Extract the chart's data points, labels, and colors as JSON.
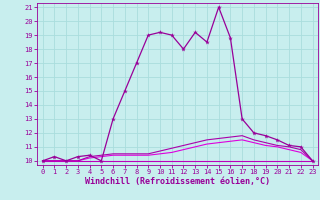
{
  "xlabel": "Windchill (Refroidissement éolien,°C)",
  "xlim": [
    -0.5,
    23.5
  ],
  "ylim": [
    9.7,
    21.3
  ],
  "xticks": [
    0,
    1,
    2,
    3,
    4,
    5,
    6,
    7,
    8,
    9,
    10,
    11,
    12,
    13,
    14,
    15,
    16,
    17,
    18,
    19,
    20,
    21,
    22,
    23
  ],
  "yticks": [
    10,
    11,
    12,
    13,
    14,
    15,
    16,
    17,
    18,
    19,
    20,
    21
  ],
  "bg_color": "#c8eeee",
  "grid_color": "#aadddd",
  "line_color1": "#990099",
  "line_color2": "#bb00bb",
  "line_color3": "#dd00dd",
  "line_color4": "#aa00aa",
  "series1_x": [
    0,
    1,
    2,
    3,
    4,
    5,
    6,
    7,
    8,
    9,
    10,
    11,
    12,
    13,
    14,
    15,
    16,
    17,
    18,
    19,
    20,
    21,
    22,
    23
  ],
  "series1_y": [
    10,
    10.3,
    10,
    10.3,
    10.4,
    10,
    13,
    15,
    17,
    19,
    19.2,
    19,
    18,
    19.2,
    18.5,
    21,
    18.8,
    13,
    12,
    11.8,
    11.5,
    11.1,
    11.0,
    10
  ],
  "series2_x": [
    0,
    1,
    2,
    3,
    4,
    5,
    6,
    7,
    8,
    9,
    10,
    11,
    12,
    13,
    14,
    15,
    16,
    17,
    18,
    19,
    20,
    21,
    22,
    23
  ],
  "series2_y": [
    10,
    10,
    10,
    10,
    10,
    10,
    10,
    10,
    10,
    10,
    10,
    10,
    10,
    10,
    10,
    10,
    10,
    10,
    10,
    10,
    10,
    10,
    10,
    10
  ],
  "series3_x": [
    0,
    1,
    2,
    3,
    4,
    5,
    6,
    7,
    8,
    9,
    10,
    11,
    12,
    13,
    14,
    15,
    16,
    17,
    18,
    19,
    20,
    21,
    22,
    23
  ],
  "series3_y": [
    10,
    10,
    10,
    10,
    10.2,
    10.3,
    10.4,
    10.4,
    10.4,
    10.4,
    10.5,
    10.6,
    10.8,
    11.0,
    11.2,
    11.3,
    11.4,
    11.5,
    11.3,
    11.1,
    11.0,
    10.8,
    10.6,
    10.0
  ],
  "series4_x": [
    0,
    1,
    2,
    3,
    4,
    5,
    6,
    7,
    8,
    9,
    10,
    11,
    12,
    13,
    14,
    15,
    16,
    17,
    18,
    19,
    20,
    21,
    22,
    23
  ],
  "series4_y": [
    10,
    10,
    10,
    10,
    10.3,
    10.4,
    10.5,
    10.5,
    10.5,
    10.5,
    10.7,
    10.9,
    11.1,
    11.3,
    11.5,
    11.6,
    11.7,
    11.8,
    11.5,
    11.3,
    11.1,
    11.0,
    10.8,
    10.0
  ],
  "tick_fontsize": 5.0,
  "xlabel_fontsize": 6.0
}
